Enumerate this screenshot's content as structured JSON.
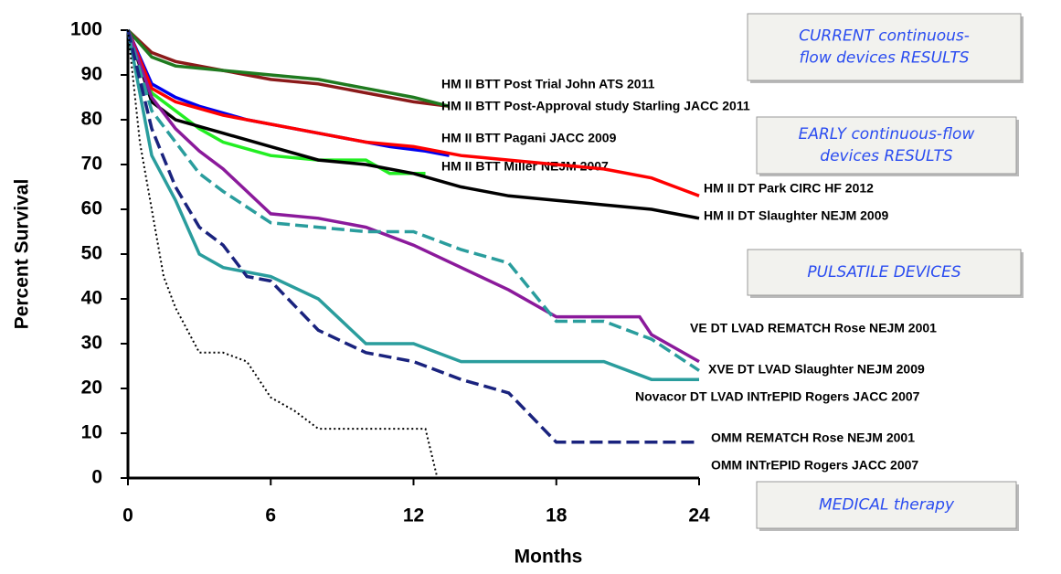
{
  "chart_data": {
    "type": "line",
    "x_label": "Months",
    "y_label": "Percent Survival",
    "xlim": [
      0,
      24
    ],
    "ylim": [
      0,
      100
    ],
    "xticks": [
      0,
      6,
      12,
      18,
      24
    ],
    "yticks": [
      0,
      10,
      20,
      30,
      40,
      50,
      60,
      70,
      80,
      90,
      100
    ],
    "series": [
      {
        "name": "HM II BTT Post Trial John ATS 2011",
        "color": "#8b1a1a",
        "linestyle": "solid",
        "x": [
          0,
          1,
          2,
          4,
          6,
          8,
          10,
          12,
          13.5
        ],
        "values": [
          100,
          95,
          93,
          91,
          89,
          88,
          86,
          84,
          83
        ]
      },
      {
        "name": "HM II BTT Post-Approval study Starling JACC 2011",
        "color": "#1f7a1f",
        "linestyle": "solid",
        "x": [
          0,
          1,
          2,
          4,
          6,
          8,
          10,
          12,
          13.5
        ],
        "values": [
          100,
          94,
          92,
          91,
          90,
          89,
          87,
          85,
          83
        ]
      },
      {
        "name": "HM II BTT Pagani JACC 2009",
        "color": "#0000ee",
        "linestyle": "solid",
        "x": [
          0,
          1,
          2,
          3,
          5,
          7,
          9,
          11,
          12.5,
          13.5
        ],
        "values": [
          100,
          88,
          85,
          83,
          80,
          78,
          76,
          74,
          73,
          72
        ]
      },
      {
        "name": "HM II BTT Miller NEJM 2007",
        "color": "#22ee22",
        "linestyle": "solid",
        "x": [
          0,
          1,
          2,
          3,
          4,
          6,
          8,
          10,
          11,
          12.5
        ],
        "values": [
          100,
          86,
          82,
          78,
          75,
          72,
          71,
          71,
          68,
          68
        ]
      },
      {
        "name": "HM II DT Park CIRC HF 2012",
        "color": "#ff0000",
        "linestyle": "solid",
        "x": [
          0,
          1,
          2,
          4,
          6,
          8,
          10,
          12,
          14,
          16,
          18,
          20,
          22,
          23,
          24
        ],
        "values": [
          100,
          87,
          84,
          81,
          79,
          77,
          75,
          74,
          72,
          71,
          70,
          69,
          67,
          65,
          63
        ]
      },
      {
        "name": "HM II DT Slaughter NEJM 2009",
        "color": "#000000",
        "linestyle": "solid",
        "x": [
          0,
          1,
          2,
          4,
          6,
          8,
          10,
          12,
          14,
          16,
          18,
          20,
          22,
          24
        ],
        "values": [
          100,
          84,
          80,
          77,
          74,
          71,
          70,
          68,
          65,
          63,
          62,
          61,
          60,
          58
        ]
      },
      {
        "name": "VE DT LVAD REMATCH Rose NEJM 2001",
        "color": "#8b1a9b",
        "linestyle": "solid",
        "x": [
          0,
          1,
          2,
          3,
          4,
          5,
          6,
          8,
          10,
          12,
          14,
          16,
          18,
          20,
          21.5,
          22,
          23,
          24
        ],
        "values": [
          100,
          85,
          78,
          73,
          69,
          64,
          59,
          58,
          56,
          52,
          47,
          42,
          36,
          36,
          36,
          32,
          29,
          26
        ]
      },
      {
        "name": "XVE DT LVAD Slaughter NEJM 2009",
        "color": "#2a9d9d",
        "linestyle": "dashed",
        "x": [
          0,
          1,
          2,
          3,
          4,
          6,
          8,
          10,
          12,
          14,
          16,
          18,
          20,
          22,
          24
        ],
        "values": [
          100,
          82,
          75,
          68,
          64,
          57,
          56,
          55,
          55,
          51,
          48,
          35,
          35,
          31,
          24
        ]
      },
      {
        "name": "Novacor DT LVAD INTrEPID Rogers JACC 2007",
        "color": "#2a9d9d",
        "linestyle": "solid",
        "x": [
          0,
          1,
          2,
          3,
          4,
          6,
          8,
          10,
          12,
          14,
          16,
          18,
          20,
          22,
          24
        ],
        "values": [
          100,
          72,
          62,
          50,
          47,
          45,
          40,
          30,
          30,
          26,
          26,
          26,
          26,
          22,
          22
        ]
      },
      {
        "name": "OMM REMATCH Rose NEJM 2001",
        "color": "#1a237e",
        "linestyle": "dashed",
        "x": [
          0,
          1,
          2,
          3,
          4,
          5,
          6,
          8,
          10,
          12,
          14,
          16,
          18,
          20,
          22,
          24
        ],
        "values": [
          100,
          78,
          65,
          56,
          52,
          45,
          44,
          33,
          28,
          26,
          22,
          19,
          8,
          8,
          8,
          8
        ]
      },
      {
        "name": "OMM INTrEPID Rogers JACC 2007",
        "color": "#000000",
        "linestyle": "dotted",
        "x": [
          0,
          0.5,
          1,
          1.5,
          2,
          3,
          4,
          5,
          6,
          7,
          8,
          10,
          12,
          12.5,
          13,
          18,
          24
        ],
        "values": [
          100,
          75,
          60,
          45,
          38,
          28,
          28,
          26,
          18,
          15,
          11,
          11,
          11,
          11,
          0,
          0,
          0
        ]
      }
    ],
    "annotations": [
      {
        "lines": [
          "CURRENT continuous-",
          "flow devices RESULTS"
        ]
      },
      {
        "lines": [
          "EARLY  continuous-flow",
          "devices RESULTS"
        ]
      },
      {
        "lines": [
          "PULSATILE DEVICES"
        ]
      },
      {
        "lines": [
          "MEDICAL therapy"
        ]
      }
    ]
  }
}
